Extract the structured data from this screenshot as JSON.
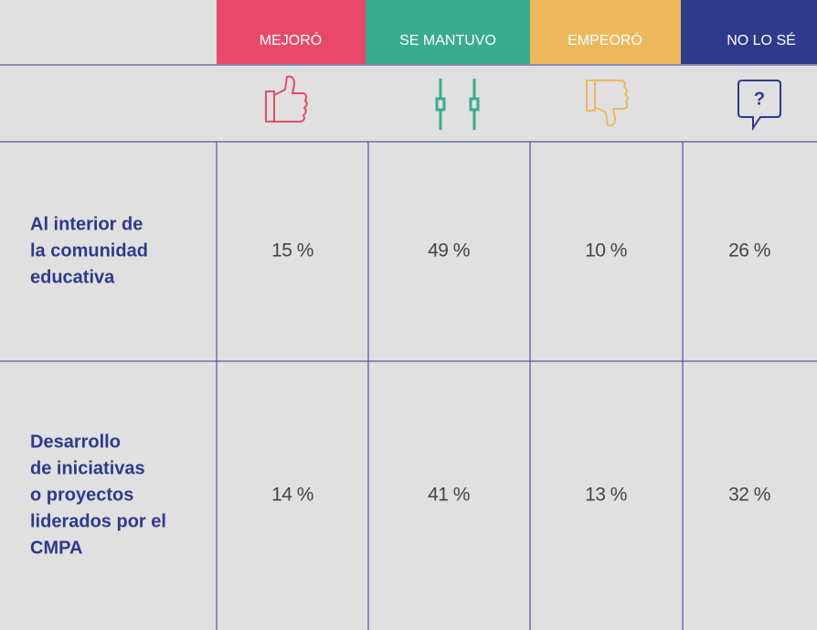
{
  "table": {
    "columns": [
      "MEJORÓ",
      "SE MANTUVO",
      "EMPEORÓ",
      "NO LO SÉ"
    ],
    "icon_text": "?",
    "rows": [
      {
        "label_lines": [
          "Al interior de",
          "la comunidad",
          "educativa"
        ],
        "values": [
          "15 %",
          "49 %",
          "10 %",
          "26 %"
        ]
      },
      {
        "label_lines": [
          "Desarrollo",
          "de iniciativas",
          "o proyectos",
          "liderados por el",
          "CMPA"
        ],
        "values": [
          "14 %",
          "41 %",
          "13 %",
          "32 %"
        ]
      }
    ]
  }
}
